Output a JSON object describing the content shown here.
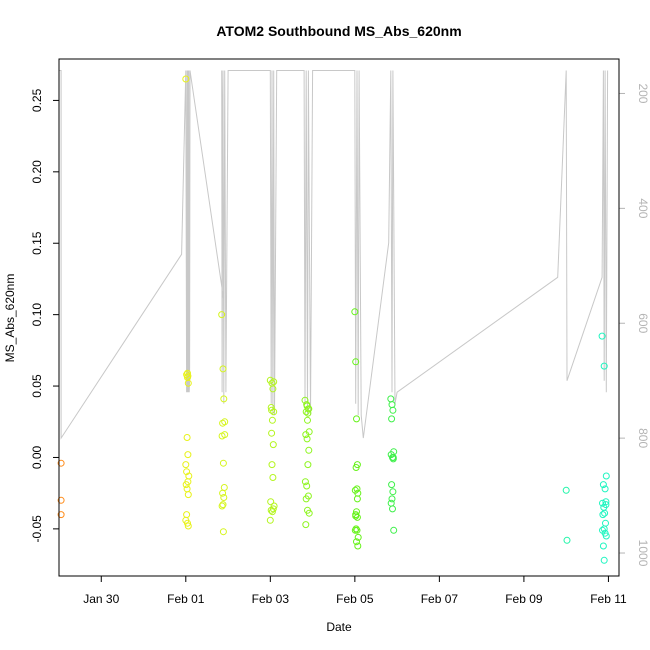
{
  "chart_data": {
    "type": "scatter",
    "title": "ATOM2 Southbound MS_Abs_620nm",
    "xlabel": "Date",
    "ylabel": "MS_Abs_620nm",
    "xlim": [
      -2.0,
      11.25
    ],
    "ylim": [
      -0.083,
      0.279
    ],
    "x_ticks": [
      {
        "label": "Jan 30",
        "value": -1
      },
      {
        "label": "Feb 01",
        "value": 1
      },
      {
        "label": "Feb 03",
        "value": 3
      },
      {
        "label": "Feb 05",
        "value": 5
      },
      {
        "label": "Feb 07",
        "value": 7
      },
      {
        "label": "Feb 09",
        "value": 9
      },
      {
        "label": "Feb 11",
        "value": 11
      }
    ],
    "y_ticks": [
      -0.05,
      0.0,
      0.05,
      0.1,
      0.15,
      0.2,
      0.25
    ],
    "y_tick_labels": [
      "-0.05",
      "0.00",
      "0.05",
      "0.10",
      "0.15",
      "0.20",
      "0.25"
    ],
    "right_axis": {
      "color": "#b4b4b4",
      "ylim": [
        1040,
        140
      ],
      "ticks": [
        200,
        400,
        600,
        800,
        1000
      ],
      "tick_labels": [
        "200",
        "400",
        "600",
        "800",
        "1000"
      ]
    },
    "grid": false,
    "point_style": "open-circle",
    "series": [
      {
        "color": "#ff8c1a",
        "x": [
          -1.95,
          -1.95,
          -1.95
        ],
        "y": [
          -0.004,
          -0.03,
          -0.04
        ]
      },
      {
        "color": "#e8f21a",
        "x": [
          1.0,
          1.02,
          1.04,
          1.06,
          1.03,
          1.05,
          1.0,
          1.02,
          1.07,
          1.05,
          1.01,
          1.03,
          1.06,
          1.0,
          1.04,
          1.06,
          1.02,
          1.05,
          1.04
        ],
        "y": [
          0.265,
          0.058,
          0.056,
          0.052,
          0.014,
          0.002,
          -0.005,
          -0.01,
          -0.013,
          -0.017,
          -0.019,
          -0.022,
          -0.026,
          -0.044,
          -0.046,
          -0.048,
          -0.04,
          0.057,
          0.059
        ]
      },
      {
        "color": "#d6f51f",
        "x": [
          1.85,
          1.88,
          1.9,
          1.87,
          1.92,
          1.86,
          1.89,
          1.91,
          1.87,
          1.9,
          1.88,
          1.86,
          1.92,
          1.89
        ],
        "y": [
          0.1,
          0.062,
          0.041,
          0.024,
          0.016,
          0.015,
          -0.004,
          -0.021,
          -0.025,
          -0.028,
          -0.033,
          -0.034,
          0.025,
          -0.052
        ]
      },
      {
        "color": "#b4f51f",
        "x": [
          3.0,
          3.04,
          3.06,
          3.02,
          3.08,
          3.05,
          3.03,
          3.07,
          3.04,
          3.06,
          3.01,
          3.09,
          3.02,
          3.05,
          3.07,
          3.0,
          3.08,
          3.03
        ],
        "y": [
          0.054,
          0.052,
          0.048,
          0.035,
          0.032,
          0.026,
          0.017,
          0.009,
          -0.005,
          -0.014,
          -0.031,
          -0.034,
          -0.037,
          -0.038,
          -0.036,
          -0.044,
          0.053,
          0.033
        ]
      },
      {
        "color": "#8ef51f",
        "x": [
          3.82,
          3.86,
          3.9,
          3.85,
          3.88,
          3.92,
          3.84,
          3.87,
          3.91,
          3.89,
          3.83,
          3.86,
          3.9,
          3.85,
          3.88,
          3.92,
          3.84,
          3.87,
          3.91,
          3.89
        ],
        "y": [
          0.04,
          0.037,
          0.034,
          0.032,
          0.026,
          0.018,
          0.016,
          0.013,
          0.005,
          -0.005,
          -0.017,
          -0.02,
          -0.027,
          -0.029,
          -0.037,
          -0.039,
          -0.047,
          0.036,
          0.034,
          0.031
        ]
      },
      {
        "color": "#66f21a",
        "x": [
          5.0,
          5.02,
          5.04,
          5.06,
          5.03,
          5.05,
          5.01,
          5.07,
          5.04,
          5.02,
          5.06,
          5.03,
          5.05,
          5.08,
          5.01,
          5.04,
          5.07,
          5.06,
          5.02
        ],
        "y": [
          0.102,
          0.067,
          0.027,
          -0.005,
          -0.007,
          -0.022,
          -0.023,
          -0.025,
          -0.038,
          -0.04,
          -0.042,
          -0.05,
          -0.051,
          -0.056,
          -0.051,
          -0.059,
          -0.062,
          -0.029,
          -0.041
        ]
      },
      {
        "color": "#3ef04a",
        "x": [
          5.85,
          5.88,
          5.9,
          5.87,
          5.92,
          5.86,
          5.89,
          5.91,
          5.87,
          5.9,
          5.88,
          5.86,
          5.92,
          5.89,
          5.91
        ],
        "y": [
          0.041,
          0.037,
          0.033,
          0.027,
          0.004,
          0.002,
          0.0,
          -0.001,
          -0.019,
          -0.024,
          -0.029,
          -0.032,
          -0.051,
          -0.036,
          0.0
        ]
      },
      {
        "color": "#1ff5a8",
        "x": [
          10.0,
          10.02
        ],
        "y": [
          -0.023,
          -0.058
        ]
      },
      {
        "color": "#1ff5c0",
        "x": [
          10.85,
          10.9,
          10.95,
          10.88,
          10.92,
          10.86,
          10.94,
          10.89,
          10.91,
          10.87,
          10.93,
          10.9,
          10.86,
          10.92,
          10.95,
          10.88,
          10.9,
          10.94
        ],
        "y": [
          0.085,
          0.064,
          -0.013,
          -0.019,
          -0.022,
          -0.032,
          -0.033,
          -0.035,
          -0.039,
          -0.04,
          -0.046,
          -0.05,
          -0.051,
          -0.053,
          -0.055,
          -0.062,
          -0.072,
          -0.031
        ]
      }
    ],
    "depth_trace": {
      "color": "#c8c8c8",
      "axis": "right",
      "x": [
        -2.0,
        -1.95,
        -1.95,
        0.9,
        1.0,
        1.02,
        1.03,
        1.04,
        1.05,
        1.06,
        1.07,
        1.08,
        1.09,
        1.1,
        1.9,
        1.85,
        1.86,
        1.88,
        1.9,
        1.92,
        1.95,
        2.0,
        3.0,
        3.02,
        3.04,
        3.06,
        3.08,
        3.1,
        3.15,
        3.8,
        3.82,
        3.85,
        3.88,
        3.9,
        3.95,
        4.0,
        5.0,
        5.02,
        5.05,
        5.08,
        5.1,
        5.15,
        5.2,
        5.8,
        5.85,
        5.88,
        5.9,
        5.95,
        6.0,
        9.8,
        10.0,
        10.02,
        10.85,
        10.88,
        10.9,
        10.92,
        10.95,
        10.98
      ],
      "y": [
        160,
        160,
        800,
        480,
        160,
        720,
        160,
        720,
        160,
        720,
        160,
        720,
        700,
        160,
        560,
        160,
        720,
        160,
        740,
        160,
        720,
        160,
        160,
        740,
        160,
        760,
        160,
        760,
        160,
        160,
        740,
        160,
        760,
        160,
        760,
        160,
        160,
        740,
        160,
        760,
        160,
        760,
        800,
        460,
        160,
        720,
        160,
        740,
        720,
        520,
        160,
        700,
        520,
        160,
        700,
        160,
        720,
        160
      ]
    }
  }
}
